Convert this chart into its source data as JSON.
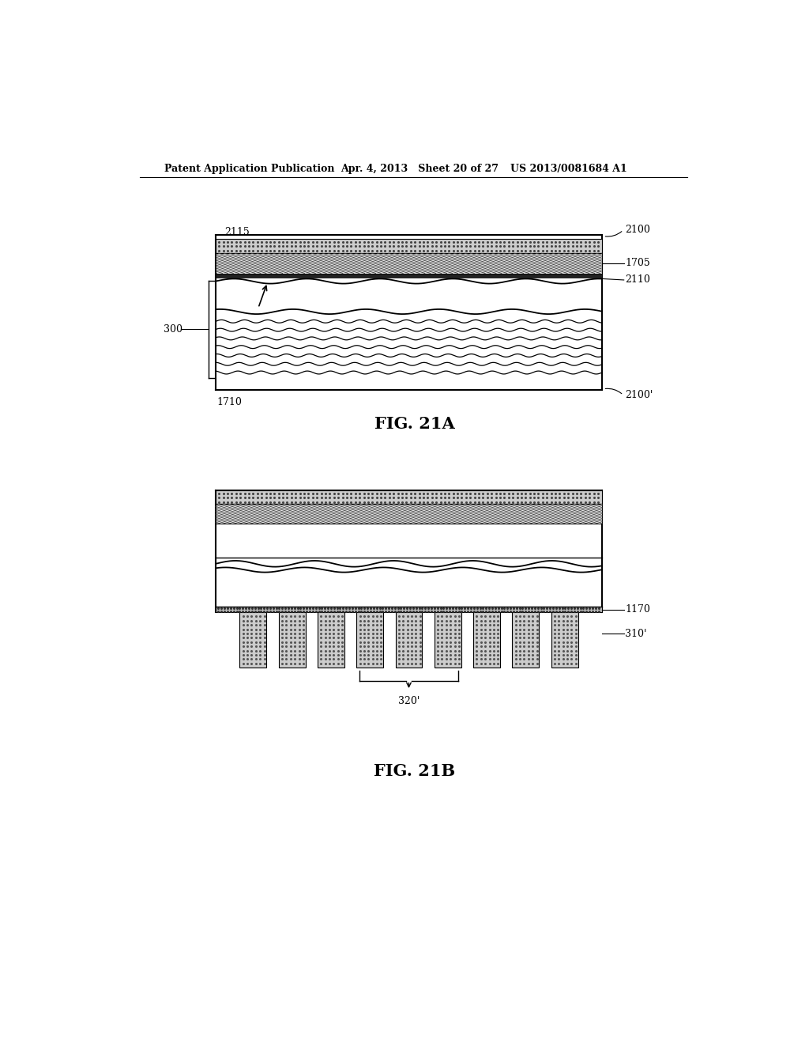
{
  "header_left": "Patent Application Publication",
  "header_mid": "Apr. 4, 2013   Sheet 20 of 27",
  "header_right": "US 2013/0081684 A1",
  "fig_a_label": "FIG. 21A",
  "fig_b_label": "FIG. 21B",
  "bg_color": "#ffffff",
  "line_color": "#000000",
  "label_2115": "2115",
  "label_2100": "2100",
  "label_1705": "1705",
  "label_2110": "2110",
  "label_300": "300",
  "label_1710": "1710",
  "label_2100p": "2100'",
  "label_1170": "1170",
  "label_310p": "310'",
  "label_320p": "320'"
}
